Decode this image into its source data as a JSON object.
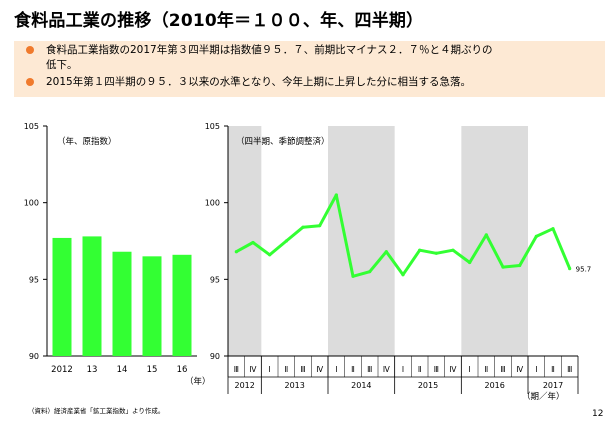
{
  "title": "食料品工業の推移（2010年＝１００、年、四半期）",
  "summary": {
    "bullet1_line1": "食料品工業指数の2017年第３四半期は指数値９５．７、前期比マイナス２．７％と４期ぶりの",
    "bullet1_line2": "低下。",
    "bullet2": "2015年第１四半期の９５．３以来の水準となり、今年上期に上昇した分に相当する急落。"
  },
  "source_note": "（資料）経済産業省「鉱工業指数」より作成。",
  "page_number": "12",
  "colors": {
    "bar": "#33ff33",
    "line": "#33ff33",
    "summary_bg": "#fde9d4",
    "bullet": "#f07a2c",
    "shade": "#dcdcdc"
  },
  "chart_data": [
    {
      "type": "bar",
      "panel_label": "（年、原指数）",
      "categories": [
        "2012",
        "13",
        "14",
        "15",
        "16"
      ],
      "x_unit": "（年）",
      "values": [
        97.7,
        97.8,
        96.8,
        96.5,
        96.6
      ],
      "ylim": [
        90,
        105
      ],
      "yticks": [
        "90",
        "95",
        "100",
        "105"
      ],
      "grid": false
    },
    {
      "type": "line",
      "panel_label": "（四半期、季節調整済）",
      "quarter_labels": [
        "Ⅲ",
        "Ⅳ",
        "Ⅰ",
        "Ⅱ",
        "Ⅲ",
        "Ⅳ",
        "Ⅰ",
        "Ⅱ",
        "Ⅲ",
        "Ⅳ",
        "Ⅰ",
        "Ⅱ",
        "Ⅲ",
        "Ⅳ",
        "Ⅰ",
        "Ⅱ",
        "Ⅲ",
        "Ⅳ",
        "Ⅰ",
        "Ⅱ",
        "Ⅲ"
      ],
      "year_labels": [
        {
          "label": "2012",
          "quarters": 2
        },
        {
          "label": "2013",
          "quarters": 4
        },
        {
          "label": "2014",
          "quarters": 4
        },
        {
          "label": "2015",
          "quarters": 4
        },
        {
          "label": "2016",
          "quarters": 4
        },
        {
          "label": "2017",
          "quarters": 3
        }
      ],
      "x_unit": "（期／年）",
      "values": [
        96.8,
        97.4,
        96.6,
        97.5,
        98.4,
        98.5,
        100.5,
        95.2,
        95.5,
        96.8,
        95.3,
        96.9,
        96.7,
        96.9,
        96.1,
        97.9,
        95.8,
        95.9,
        97.8,
        98.3,
        95.7
      ],
      "end_label": "95.7",
      "ylim": [
        90,
        105
      ],
      "yticks": [
        "90",
        "95",
        "100",
        "105"
      ],
      "shaded_years": [
        "2012",
        "2014",
        "2016"
      ],
      "grid": false
    }
  ]
}
